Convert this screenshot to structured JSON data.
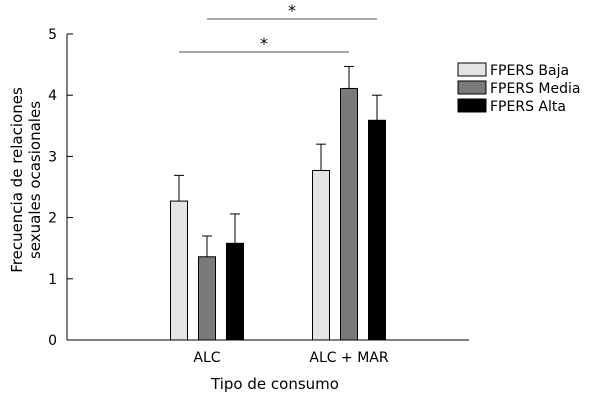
{
  "chart_data": {
    "type": "bar",
    "categories": [
      "ALC",
      "ALC + MAR"
    ],
    "series": [
      {
        "name": "FPERS Baja",
        "values": [
          2.27,
          2.77
        ],
        "errors": [
          0.42,
          0.43
        ],
        "color": "#e4e4e4"
      },
      {
        "name": "FPERS Media",
        "values": [
          1.36,
          4.11
        ],
        "errors": [
          0.34,
          0.36
        ],
        "color": "#7a7a7a"
      },
      {
        "name": "FPERS Alta",
        "values": [
          1.58,
          3.59
        ],
        "errors": [
          0.48,
          0.41
        ],
        "color": "#000000"
      }
    ],
    "xlabel": "Tipo de consumo",
    "ylabel": [
      "Frecuencia de relaciones",
      "sexuales ocasionales"
    ],
    "ylim": [
      0,
      5
    ],
    "yticks": [
      "0",
      "1",
      "2",
      "3",
      "4",
      "5"
    ],
    "legend_position": "top-right",
    "grid": false,
    "significance": [
      {
        "label": "*",
        "from": "FPERS Baja, ALC",
        "to": "FPERS Media, ALC + MAR"
      },
      {
        "label": "*",
        "from": "FPERS Media, ALC",
        "to": "FPERS Alta, ALC + MAR"
      }
    ]
  }
}
